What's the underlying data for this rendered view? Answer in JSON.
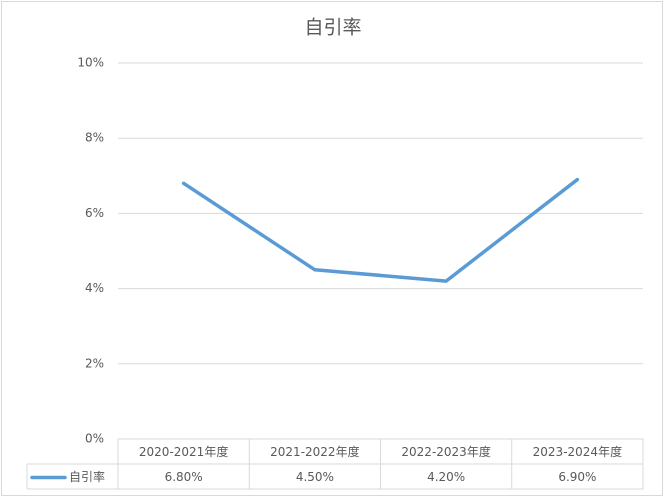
{
  "chart_data": {
    "type": "line",
    "title": "自引率",
    "categories": [
      "2020-2021年度",
      "2021-2022年度",
      "2022-2023年度",
      "2023-2024年度"
    ],
    "series": [
      {
        "name": "自引率",
        "color": "#5b9bd5",
        "values": [
          6.8,
          4.5,
          4.2,
          6.9
        ],
        "value_labels": [
          "6.80%",
          "4.50%",
          "4.20%",
          "6.90%"
        ]
      }
    ],
    "ylim": [
      0,
      10
    ],
    "yticks": [
      {
        "value": 0,
        "label": "0%"
      },
      {
        "value": 2,
        "label": "2%"
      },
      {
        "value": 4,
        "label": "4%"
      },
      {
        "value": 6,
        "label": "6%"
      },
      {
        "value": 8,
        "label": "8%"
      },
      {
        "value": 10,
        "label": "10%"
      }
    ],
    "grid": true
  }
}
